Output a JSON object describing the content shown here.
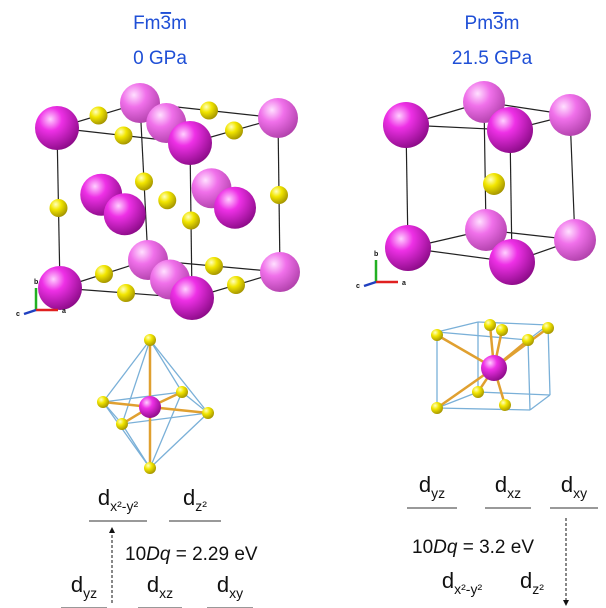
{
  "left": {
    "space_group": {
      "prefix": "Fm",
      "bar": "3",
      "suffix": "m"
    },
    "pressure": "0 GPa",
    "axes": {
      "a": "a",
      "b": "b",
      "c": "c"
    },
    "upper_levels": [
      {
        "base": "d",
        "sub": "x²-y²"
      },
      {
        "base": "d",
        "sub": "z²"
      }
    ],
    "lower_levels": [
      {
        "base": "d",
        "sub": "yz"
      },
      {
        "base": "d",
        "sub": "xz"
      },
      {
        "base": "d",
        "sub": "xy"
      }
    ],
    "splitting": {
      "prefix": "10",
      "italic": "Dq",
      "suffix": " = 2.29 eV"
    }
  },
  "right": {
    "space_group": {
      "prefix": "Pm",
      "bar": "3",
      "suffix": "m"
    },
    "pressure": "21.5 GPa",
    "axes": {
      "a": "a",
      "b": "b",
      "c": "c"
    },
    "upper_levels": [
      {
        "base": "d",
        "sub": "yz"
      },
      {
        "base": "d",
        "sub": "xz"
      },
      {
        "base": "d",
        "sub": "xy"
      }
    ],
    "lower_levels": [
      {
        "base": "d",
        "sub": "x²-y²"
      },
      {
        "base": "d",
        "sub": "z²"
      }
    ],
    "splitting": {
      "prefix": "10",
      "italic": "Dq",
      "suffix": " = 3.2 eV"
    }
  }
}
